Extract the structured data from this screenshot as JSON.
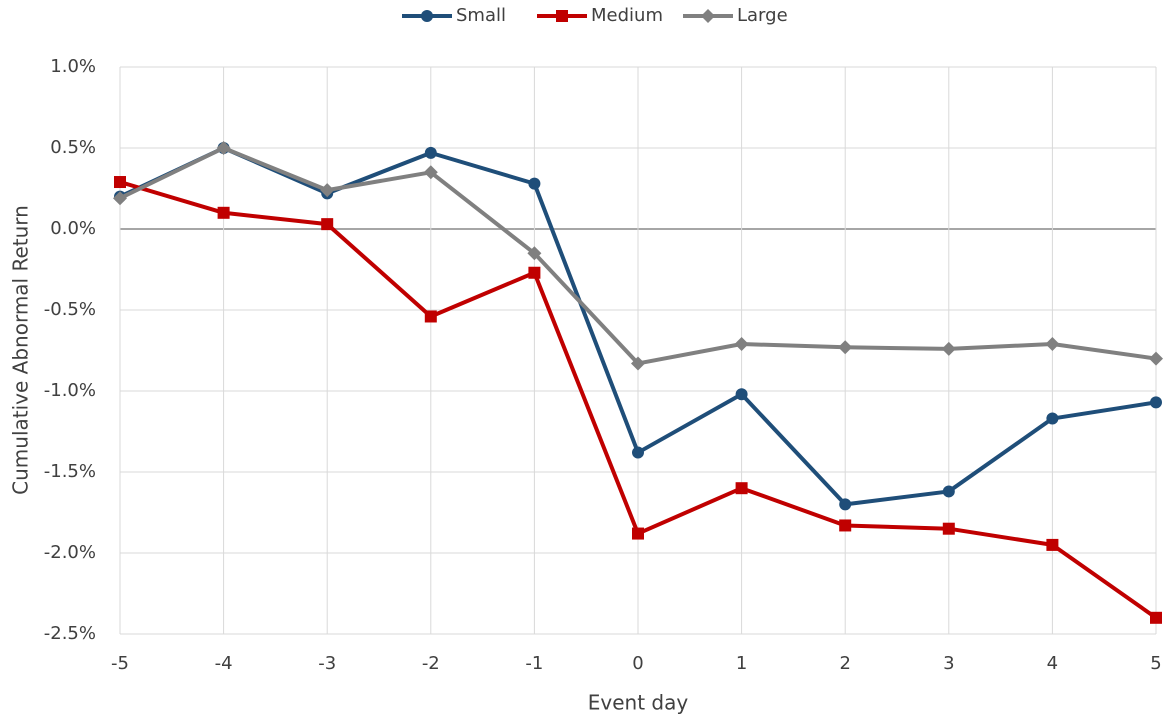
{
  "chart_data": {
    "type": "line",
    "x_label": "Event day",
    "y_label": "Cumulative Abnormal Return",
    "x": [
      -5,
      -4,
      -3,
      -2,
      -1,
      0,
      1,
      2,
      3,
      4,
      5
    ],
    "series": [
      {
        "name": "Small",
        "color": "#1f4e79",
        "marker": "circle",
        "values": [
          0.2,
          0.5,
          0.22,
          0.47,
          0.28,
          -1.38,
          -1.02,
          -1.7,
          -1.62,
          -1.17,
          -1.07
        ]
      },
      {
        "name": "Medium",
        "color": "#c00000",
        "marker": "square",
        "values": [
          0.29,
          0.1,
          0.03,
          -0.54,
          -0.27,
          -1.88,
          -1.6,
          -1.83,
          -1.85,
          -1.95,
          -2.4
        ]
      },
      {
        "name": "Large",
        "color": "#808080",
        "marker": "diamond",
        "values": [
          0.19,
          0.5,
          0.24,
          0.35,
          -0.15,
          -0.83,
          -0.71,
          -0.73,
          -0.74,
          -0.71,
          -0.8
        ]
      }
    ],
    "xlim": [
      -5,
      5
    ],
    "xticks": [
      -5,
      -4,
      -3,
      -2,
      -1,
      0,
      1,
      2,
      3,
      4,
      5
    ],
    "ylim": [
      -2.5,
      1.0
    ],
    "yticks": [
      {
        "value": -2.5,
        "label": "-2.5%"
      },
      {
        "value": -2.0,
        "label": "-2.0%"
      },
      {
        "value": -1.5,
        "label": "-1.5%"
      },
      {
        "value": -1.0,
        "label": "-1.0%"
      },
      {
        "value": -0.5,
        "label": "-0.5%"
      },
      {
        "value": 0.0,
        "label": "0.0%"
      },
      {
        "value": 0.5,
        "label": "0.5%"
      },
      {
        "value": 1.0,
        "label": "1.0%"
      }
    ],
    "grid": true,
    "legend": "top"
  }
}
